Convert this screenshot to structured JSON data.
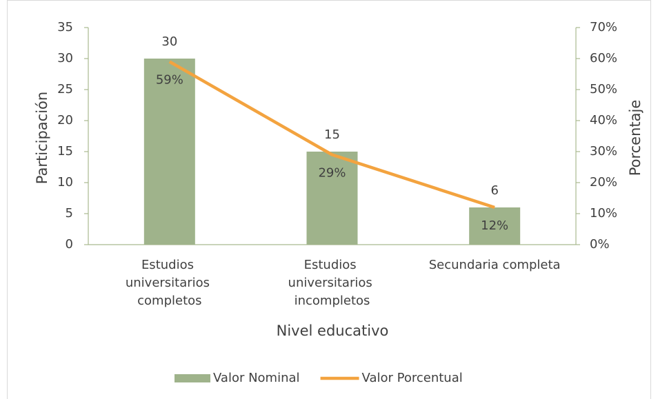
{
  "chart_data": {
    "type": "bar_line",
    "categories": [
      "Estudios universitarios completos",
      "Estudios universitarios incompletos",
      "Secundaria completa"
    ],
    "series": [
      {
        "name": "Valor Nominal",
        "type": "bar",
        "color": "#9fb38b",
        "values": [
          30,
          15,
          6
        ]
      },
      {
        "name": "Valor Porcentual",
        "type": "line",
        "axis": "y2",
        "color": "#f3a33f",
        "values": [
          59,
          29,
          12
        ],
        "value_labels": [
          "59%",
          "29%",
          "12%"
        ]
      }
    ],
    "xlabel": "Nivel educativo",
    "ylabel": "Participación",
    "y2label": "Porcentaje",
    "ylim": [
      0,
      35
    ],
    "yticks": [
      0,
      5,
      10,
      15,
      20,
      25,
      30,
      35
    ],
    "y2lim": [
      0,
      70
    ],
    "y2ticks": [
      {
        "value": 0,
        "label": "0%"
      },
      {
        "value": 10,
        "label": "10%"
      },
      {
        "value": 20,
        "label": "20%"
      },
      {
        "value": 30,
        "label": "30%"
      },
      {
        "value": 40,
        "label": "40%"
      },
      {
        "value": 50,
        "label": "50%"
      },
      {
        "value": 60,
        "label": "60%"
      },
      {
        "value": 70,
        "label": "70%"
      }
    ],
    "legend": "bottom"
  }
}
